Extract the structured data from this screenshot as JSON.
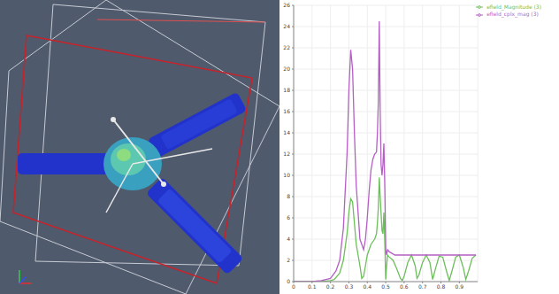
{
  "chart_data": {
    "type": "line",
    "xlim": [
      0,
      1
    ],
    "xticks": [
      0,
      0.1,
      0.2,
      0.3,
      0.4,
      0.5,
      0.6,
      0.7,
      0.8,
      0.9
    ],
    "ylim": [
      0,
      26
    ],
    "yticks": [
      0,
      2,
      4,
      6,
      8,
      10,
      12,
      14,
      16,
      18,
      20,
      22,
      24,
      26
    ],
    "grid": true,
    "legend": "top-right",
    "series": [
      {
        "name": "efield_Magnitude (3)",
        "color": "#6cbf5a",
        "x": [
          0,
          0.1,
          0.15,
          0.2,
          0.22,
          0.25,
          0.27,
          0.29,
          0.3,
          0.31,
          0.32,
          0.33,
          0.34,
          0.36,
          0.37,
          0.38,
          0.39,
          0.4,
          0.42,
          0.44,
          0.45,
          0.455,
          0.46,
          0.465,
          0.47,
          0.48,
          0.485,
          0.49,
          0.495,
          0.5,
          0.505,
          0.51,
          0.52,
          0.54,
          0.56,
          0.58,
          0.59,
          0.6,
          0.62,
          0.64,
          0.66,
          0.67,
          0.68,
          0.7,
          0.72,
          0.74,
          0.755,
          0.77,
          0.79,
          0.81,
          0.83,
          0.845,
          0.86,
          0.88,
          0.9,
          0.92,
          0.935,
          0.95,
          0.97,
          0.99
        ],
        "values": [
          0,
          0,
          0,
          0.1,
          0.2,
          0.8,
          2,
          4.5,
          6.5,
          7.8,
          7.5,
          5.5,
          3.5,
          1.5,
          0.3,
          0.5,
          1.5,
          2.5,
          3.5,
          4,
          4.5,
          5.5,
          7,
          9.8,
          8,
          4.8,
          4.5,
          6.5,
          3.8,
          0.2,
          1.5,
          2.5,
          2.3,
          2,
          1.2,
          0.3,
          0.1,
          0.5,
          1.8,
          2.5,
          1.5,
          0.3,
          0.6,
          1.8,
          2.5,
          1.8,
          0.2,
          1.2,
          2.4,
          2.3,
          1,
          0.1,
          1,
          2.3,
          2.5,
          1.4,
          0.2,
          1,
          2.2,
          2.5
        ]
      },
      {
        "name": "efield_cplx_mag (3)",
        "color": "#b45fc4",
        "x": [
          0,
          0.1,
          0.15,
          0.2,
          0.23,
          0.25,
          0.27,
          0.29,
          0.3,
          0.31,
          0.32,
          0.33,
          0.34,
          0.36,
          0.38,
          0.39,
          0.4,
          0.41,
          0.42,
          0.43,
          0.44,
          0.45,
          0.455,
          0.46,
          0.465,
          0.47,
          0.475,
          0.48,
          0.485,
          0.49,
          0.495,
          0.5,
          0.505,
          0.51,
          0.52,
          0.55,
          0.6,
          0.7,
          0.8,
          0.9,
          0.99
        ],
        "values": [
          0,
          0,
          0.1,
          0.3,
          1,
          2,
          5,
          12,
          18,
          21.8,
          20,
          14,
          9,
          4,
          3,
          4,
          6,
          8.5,
          10.5,
          11.5,
          12,
          12.2,
          14,
          17,
          24.5,
          16,
          11,
          10,
          11,
          13,
          9,
          3,
          2.5,
          3,
          2.8,
          2.5,
          2.5,
          2.5,
          2.5,
          2.5,
          2.5
        ]
      }
    ]
  }
}
